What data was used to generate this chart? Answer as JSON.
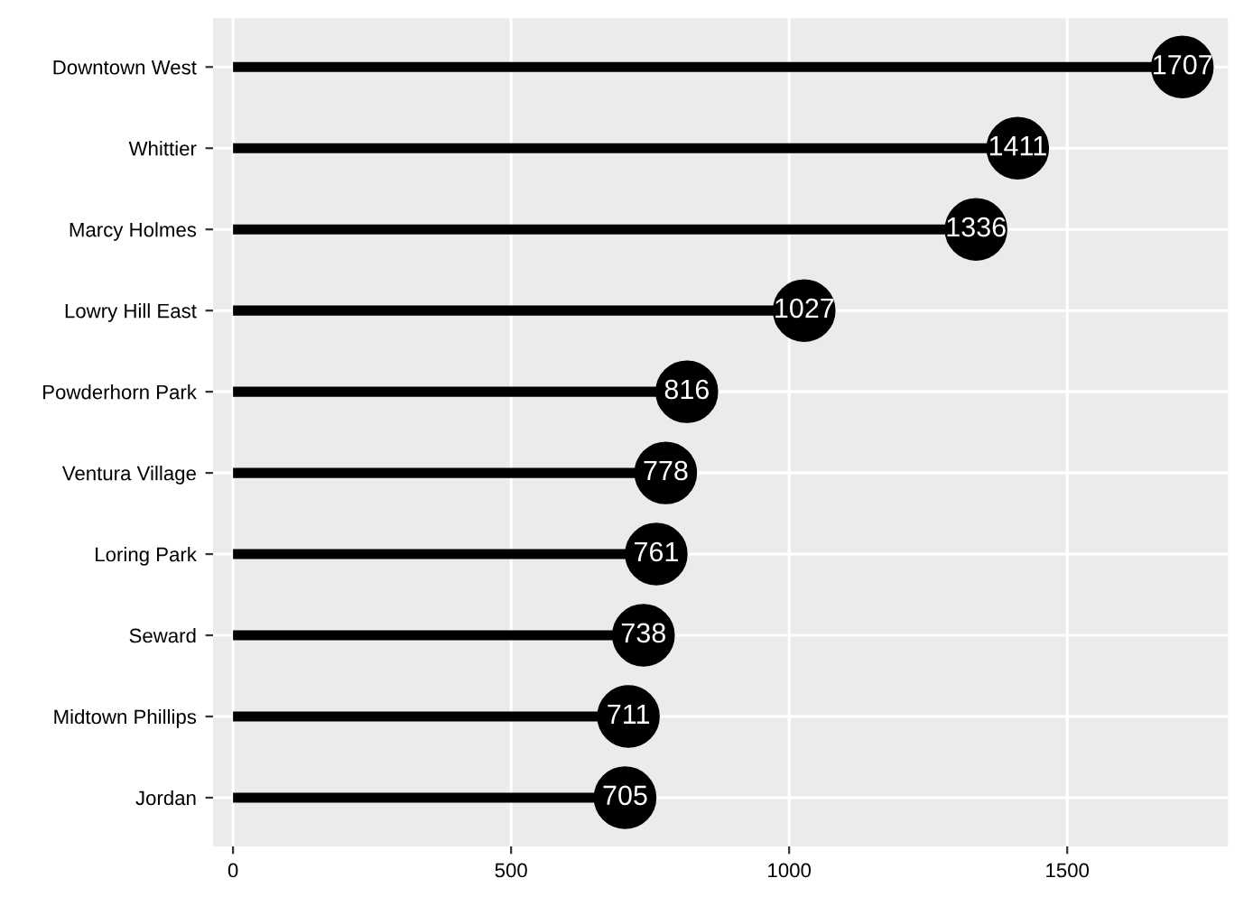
{
  "chart_data": {
    "type": "lollipop",
    "orientation": "horizontal",
    "categories": [
      "Downtown West",
      "Whittier",
      "Marcy Holmes",
      "Lowry Hill East",
      "Powderhorn Park",
      "Ventura Village",
      "Loring Park",
      "Seward",
      "Midtown Phillips",
      "Jordan"
    ],
    "values": [
      1707,
      1411,
      1336,
      1027,
      816,
      778,
      761,
      738,
      711,
      705
    ],
    "color": "#000000",
    "xlim": [
      -36,
      1789
    ],
    "xticks": [
      0,
      500,
      1000,
      1500
    ],
    "grid": true,
    "data_labels": true,
    "marker": "circle"
  }
}
